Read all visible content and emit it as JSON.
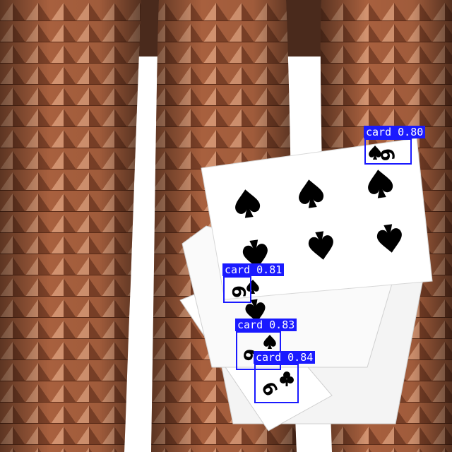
{
  "scene": {
    "background_color": "#ffffff",
    "wood_color": "#a8603e",
    "wood_dark": "#6e3822",
    "wood_light": "#c98463",
    "card_color": "#ffffff",
    "pip_color": "#000000",
    "box_color": "#1a1aff"
  },
  "detections": [
    {
      "label": "card",
      "score": "0.80",
      "text": "card 0.80"
    },
    {
      "label": "card",
      "score": "0.81",
      "text": "card 0.81"
    },
    {
      "label": "card",
      "score": "0.83",
      "text": "card 0.83"
    },
    {
      "label": "card",
      "score": "0.84",
      "text": "card 0.84"
    }
  ]
}
